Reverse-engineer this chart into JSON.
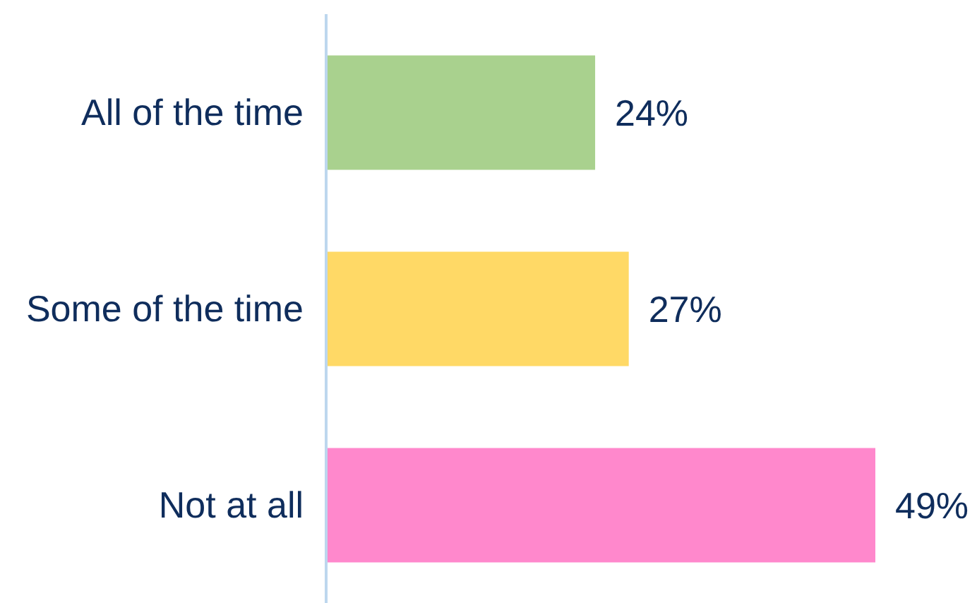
{
  "chart_data": {
    "type": "bar",
    "orientation": "horizontal",
    "categories": [
      "All of the time",
      "Some of the time",
      "Not at all"
    ],
    "values": [
      24,
      27,
      49
    ],
    "colors": [
      "#a9d18e",
      "#ffd966",
      "#ff88cc"
    ],
    "value_labels": [
      "24%",
      "27%",
      "49%"
    ],
    "grid": false,
    "legend": false
  }
}
